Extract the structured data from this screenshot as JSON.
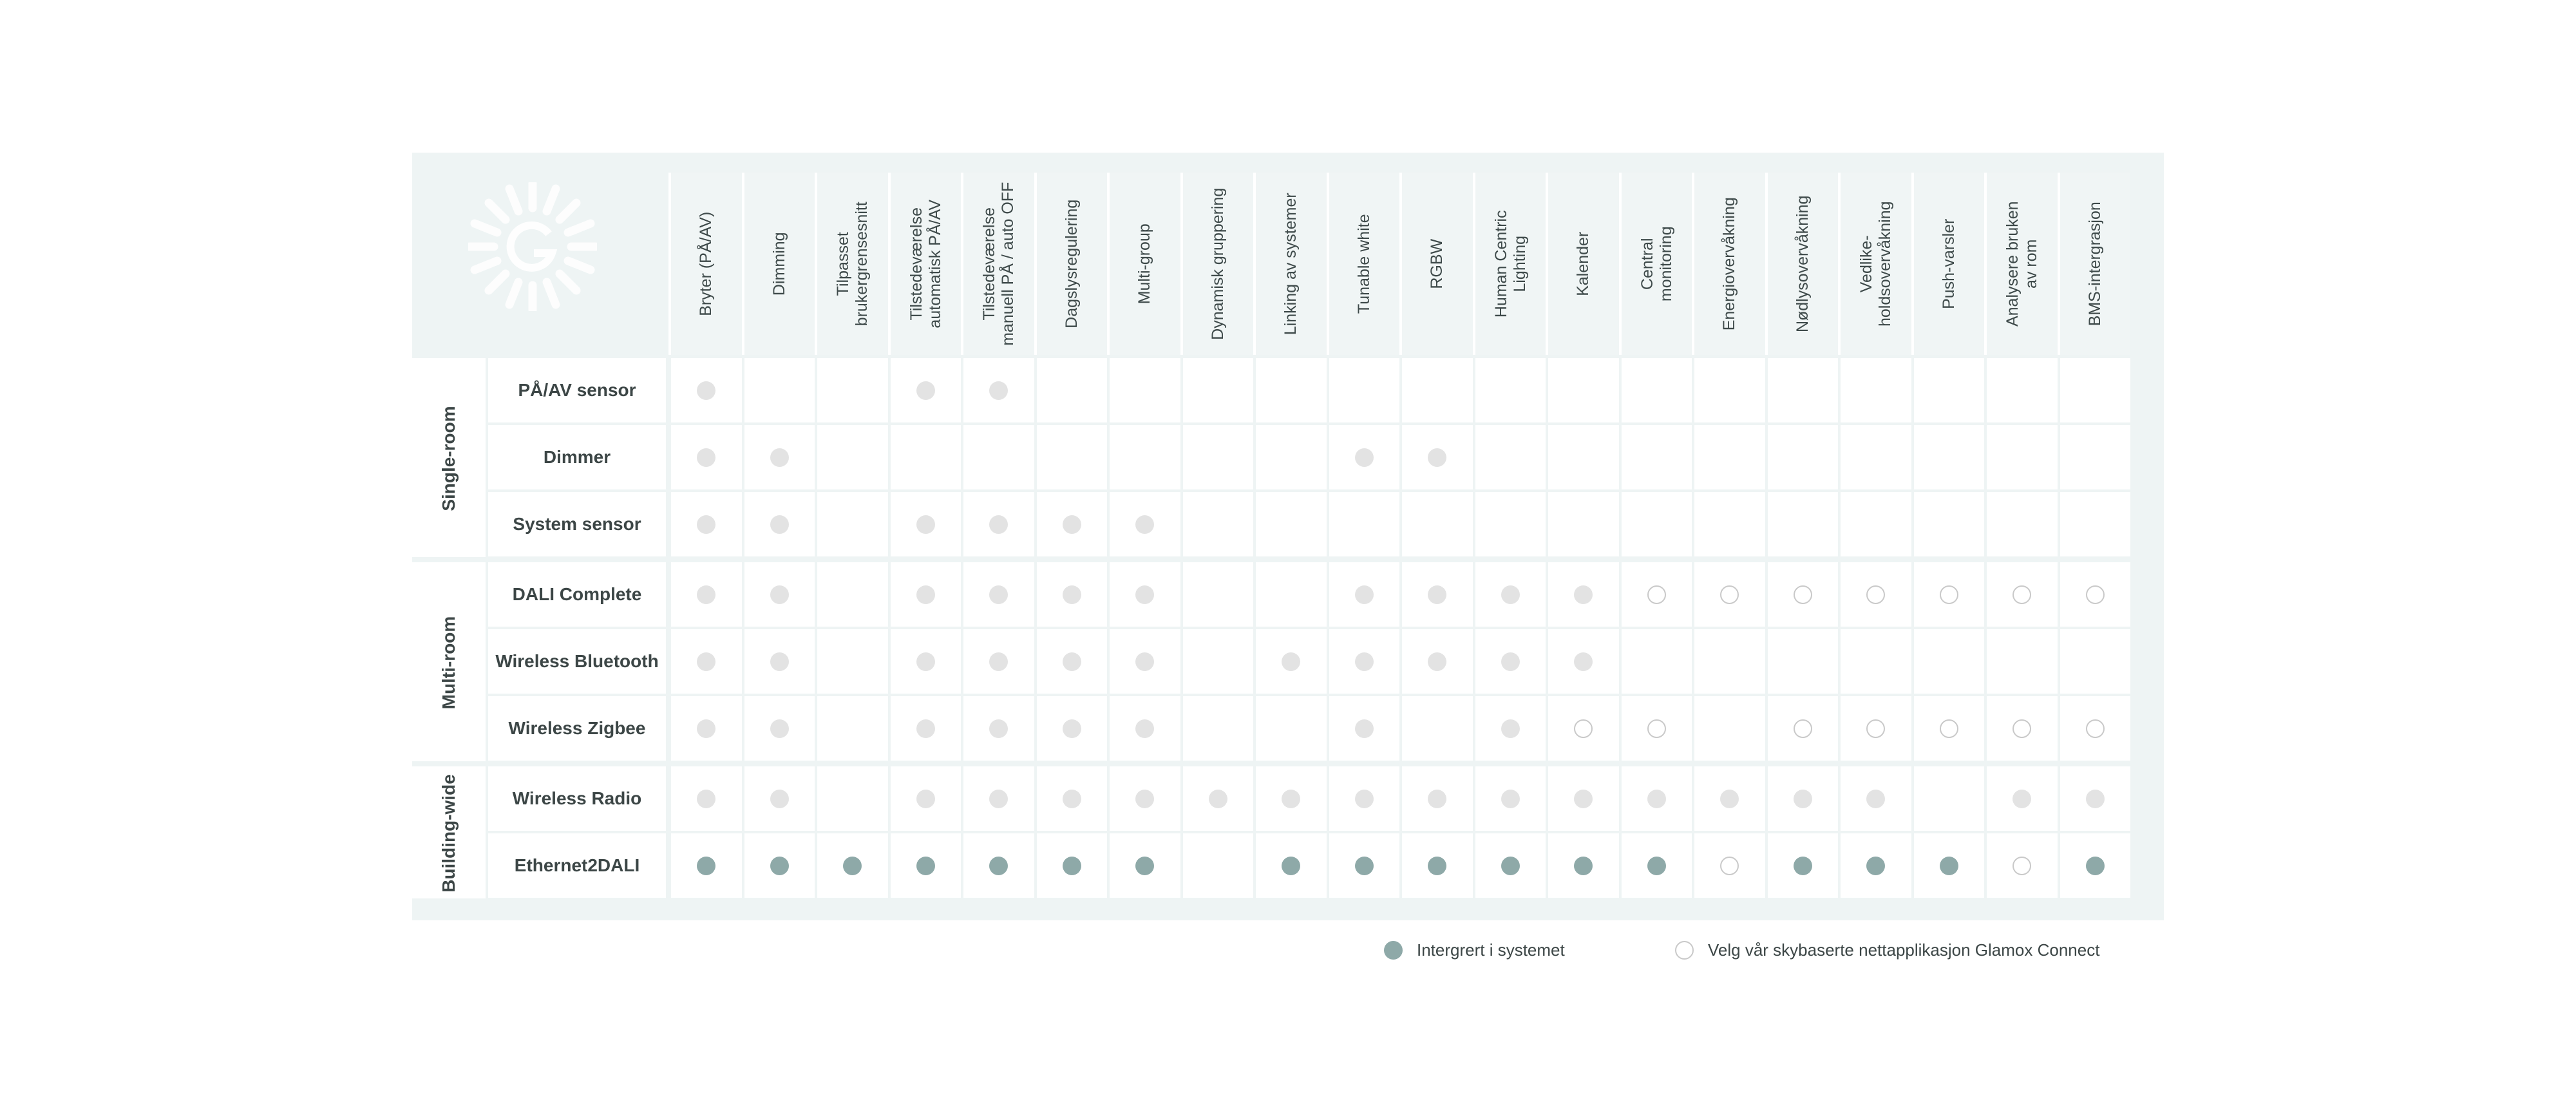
{
  "columns": [
    "Bryter (PÅ/AV)",
    "Dimming",
    "Tilpasset\nbrukergrensesnitt",
    "Tilstedeværelse\nautomatisk PÅ/AV",
    "Tilstedeværelse\nmanuell PÅ / auto OFF",
    "Dagslysregulering",
    "Multi-group",
    "Dynamisk gruppering",
    "Linking av systemer",
    "Tunable white",
    "RGBW",
    "Human Centric\nLighting",
    "Kalender",
    "Central\nmonitoring",
    "Energiovervåkning",
    "Nødlysovervåkning",
    "Vedlike-\nholdsovervåkning",
    "Push-varsler",
    "Analysere bruken\nav rom",
    "BMS-intergrasjon"
  ],
  "groups": [
    {
      "label": "Single-room",
      "rows": [
        {
          "label": "PÅ/AV sensor",
          "cells": [
            "gray",
            null,
            null,
            "gray",
            "gray",
            null,
            null,
            null,
            null,
            null,
            null,
            null,
            null,
            null,
            null,
            null,
            null,
            null,
            null,
            null
          ]
        },
        {
          "label": "Dimmer",
          "cells": [
            "gray",
            "gray",
            null,
            null,
            null,
            null,
            null,
            null,
            null,
            "gray",
            "gray",
            null,
            null,
            null,
            null,
            null,
            null,
            null,
            null,
            null
          ]
        },
        {
          "label": "System sensor",
          "cells": [
            "gray",
            "gray",
            null,
            "gray",
            "gray",
            "gray",
            "gray",
            null,
            null,
            null,
            null,
            null,
            null,
            null,
            null,
            null,
            null,
            null,
            null,
            null
          ]
        }
      ]
    },
    {
      "label": "Multi-room",
      "rows": [
        {
          "label": "DALI Complete",
          "cells": [
            "gray",
            "gray",
            null,
            "gray",
            "gray",
            "gray",
            "gray",
            null,
            null,
            "gray",
            "gray",
            "gray",
            "gray",
            "open",
            "open",
            "open",
            "open",
            "open",
            "open",
            "open"
          ]
        },
        {
          "label": "Wireless Bluetooth",
          "cells": [
            "gray",
            "gray",
            null,
            "gray",
            "gray",
            "gray",
            "gray",
            null,
            "gray",
            "gray",
            "gray",
            "gray",
            "gray",
            null,
            null,
            null,
            null,
            null,
            null,
            null
          ]
        },
        {
          "label": "Wireless Zigbee",
          "cells": [
            "gray",
            "gray",
            null,
            "gray",
            "gray",
            "gray",
            "gray",
            null,
            null,
            "gray",
            null,
            "gray",
            "open",
            "open",
            null,
            "open",
            "open",
            "open",
            "open",
            "open"
          ]
        }
      ]
    },
    {
      "label": "Building-wide",
      "rows": [
        {
          "label": "Wireless Radio",
          "cells": [
            "gray",
            "gray",
            null,
            "gray",
            "gray",
            "gray",
            "gray",
            "gray",
            "gray",
            "gray",
            "gray",
            "gray",
            "gray",
            "gray",
            "gray",
            "gray",
            "gray",
            null,
            "gray",
            "gray"
          ]
        },
        {
          "label": "Ethernet2DALI",
          "cells": [
            "teal",
            "teal",
            "teal",
            "teal",
            "teal",
            "teal",
            "teal",
            null,
            "teal",
            "teal",
            "teal",
            "teal",
            "teal",
            "teal",
            "open",
            "teal",
            "teal",
            "teal",
            "open",
            "teal"
          ]
        }
      ]
    }
  ],
  "legend": [
    {
      "status": "teal",
      "label": "Intergrert i systemet"
    },
    {
      "status": "open",
      "label": "Velg vår skybaserte nettapplikasjon Glamox Connect"
    }
  ]
}
